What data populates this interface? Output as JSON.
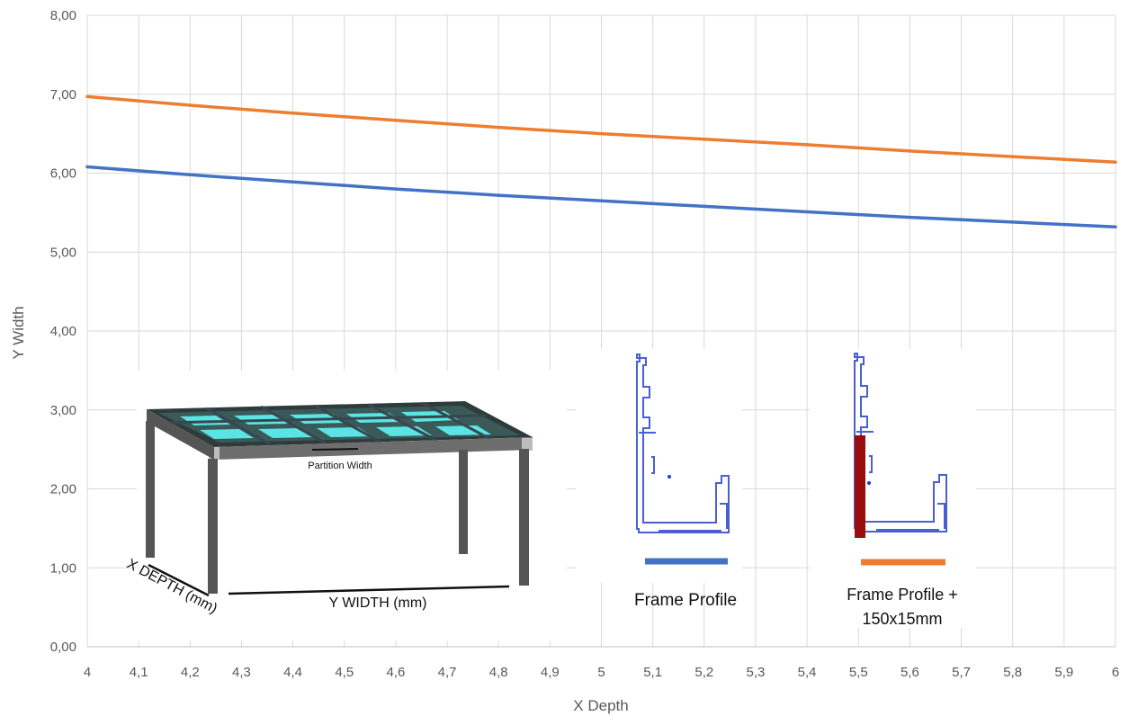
{
  "chart_data": {
    "type": "line",
    "xlabel": "X Depth",
    "ylabel": "Y Width",
    "xlim": [
      4,
      6
    ],
    "ylim": [
      0,
      8
    ],
    "x_ticks": [
      "4",
      "4,1",
      "4,2",
      "4,3",
      "4,4",
      "4,5",
      "4,6",
      "4,7",
      "4,8",
      "4,9",
      "5",
      "5,1",
      "5,2",
      "5,3",
      "5,4",
      "5,5",
      "5,6",
      "5,7",
      "5,8",
      "5,9",
      "6"
    ],
    "y_ticks": [
      "0,00",
      "1,00",
      "2,00",
      "3,00",
      "4,00",
      "5,00",
      "6,00",
      "7,00",
      "8,00"
    ],
    "grid": true,
    "x": [
      4.0,
      4.2,
      4.4,
      4.6,
      4.8,
      5.0,
      5.2,
      5.4,
      5.6,
      5.8,
      6.0
    ],
    "series": [
      {
        "name": "Frame Profile",
        "color": "#4472C4",
        "values": [
          6.08,
          5.98,
          5.89,
          5.8,
          5.72,
          5.65,
          5.58,
          5.51,
          5.44,
          5.38,
          5.32
        ]
      },
      {
        "name": "Frame Profile + 150x15mm",
        "color": "#ED7D31",
        "values": [
          6.97,
          6.86,
          6.76,
          6.67,
          6.58,
          6.5,
          6.43,
          6.36,
          6.28,
          6.21,
          6.14
        ]
      }
    ]
  },
  "illustration": {
    "partition_label": "Partition Width",
    "x_depth_label": "X DEPTH (mm)",
    "y_width_label": "Y WIDTH (mm)",
    "frame_label": "Frame Profile",
    "frame_plus_label_line1": "Frame Profile +",
    "frame_plus_label_line2": "150x15mm"
  }
}
